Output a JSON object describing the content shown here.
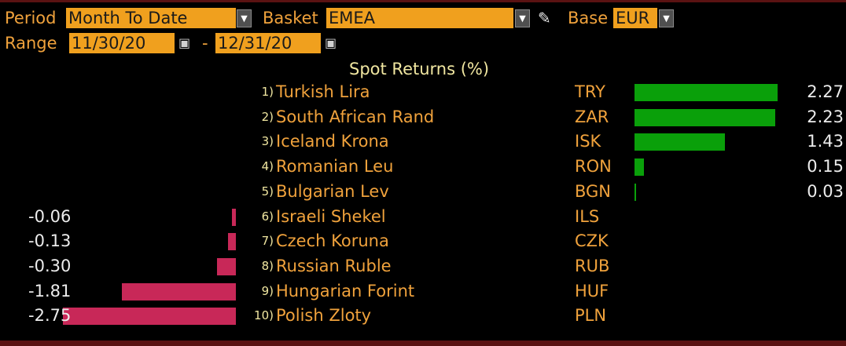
{
  "controls": {
    "period_label": "Period",
    "period_value": "Month To Date",
    "basket_label": "Basket",
    "basket_value": "EMEA",
    "base_label": "Base",
    "base_value": "EUR",
    "range_label": "Range",
    "range_start": "11/30/20",
    "range_sep": "-",
    "range_end": "12/31/20"
  },
  "icons": {
    "dropdown": "chevron-down-icon",
    "calendar": "calendar-icon",
    "edit": "pencil-icon"
  },
  "colors": {
    "positive": "#0aa00a",
    "negative": "#c82858",
    "field_bg": "#f0a01e",
    "label": "#f0a23c"
  },
  "chart_data": {
    "type": "bar",
    "title": "Spot Returns (%)",
    "rows": [
      {
        "rank": "1)",
        "name": "Turkish Lira",
        "code": "TRY",
        "value": 2.27,
        "label": "2.27"
      },
      {
        "rank": "2)",
        "name": "South African Rand",
        "code": "ZAR",
        "value": 2.23,
        "label": "2.23"
      },
      {
        "rank": "3)",
        "name": "Iceland Krona",
        "code": "ISK",
        "value": 1.43,
        "label": "1.43"
      },
      {
        "rank": "4)",
        "name": "Romanian Leu",
        "code": "RON",
        "value": 0.15,
        "label": "0.15"
      },
      {
        "rank": "5)",
        "name": "Bulgarian Lev",
        "code": "BGN",
        "value": 0.03,
        "label": "0.03"
      },
      {
        "rank": "6)",
        "name": "Israeli Shekel",
        "code": "ILS",
        "value": -0.06,
        "label": "-0.06"
      },
      {
        "rank": "7)",
        "name": "Czech Koruna",
        "code": "CZK",
        "value": -0.13,
        "label": "-0.13"
      },
      {
        "rank": "8)",
        "name": "Russian Ruble",
        "code": "RUB",
        "value": -0.3,
        "label": "-0.30"
      },
      {
        "rank": "9)",
        "name": "Hungarian Forint",
        "code": "HUF",
        "value": -1.81,
        "label": "-1.81"
      },
      {
        "rank": "10)",
        "name": "Polish Zloty",
        "code": "PLN",
        "value": -2.75,
        "label": "-2.75"
      }
    ]
  }
}
